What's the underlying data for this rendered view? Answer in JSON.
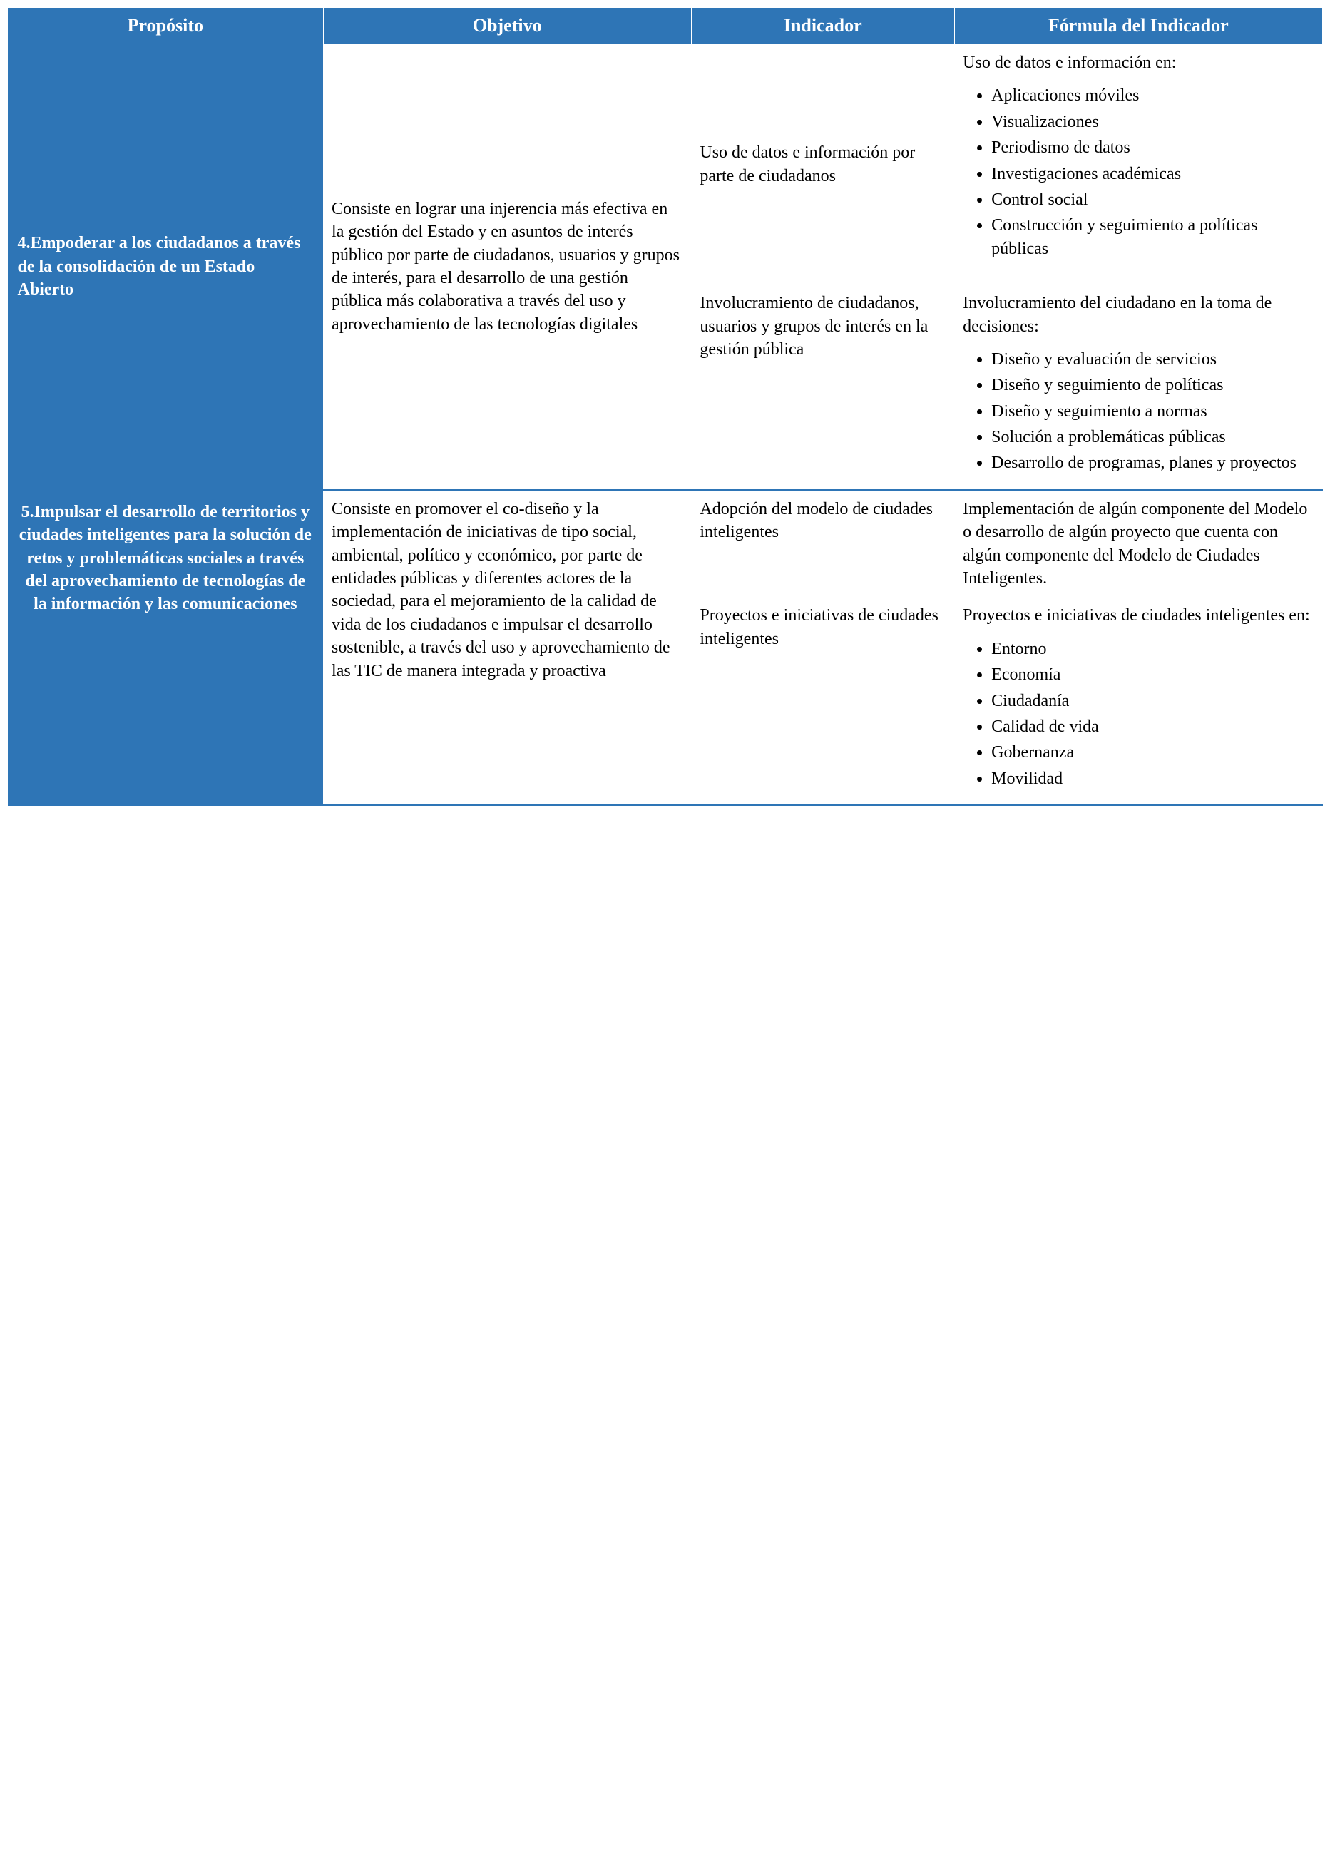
{
  "header_bg": "#2e75b6",
  "header_fg": "#ffffff",
  "columns": {
    "proposito": "Propósito",
    "objetivo": "Objetivo",
    "indicador": "Indicador",
    "formula": "Fórmula del Indicador"
  },
  "row4": {
    "proposito": "4.Empoderar a los ciudadanos a través de la consolidación de un Estado Abierto",
    "objetivo": "Consiste en lograr una injerencia más efectiva en la gestión del Estado y en asuntos de interés público por parte de ciudadanos, usuarios y grupos de interés, para el desarrollo de una gestión pública más colaborativa a través del uso y aprovechamiento de las tecnologías digitales",
    "indicador_a": "Uso de datos e información por parte de ciudadanos",
    "indicador_b": "Involucramiento de ciudadanos, usuarios y grupos de interés en la gestión pública",
    "formula_a_intro": "Uso de datos e información en:",
    "formula_a_items": [
      "Aplicaciones móviles",
      "Visualizaciones",
      "Periodismo de datos",
      "Investigaciones académicas",
      "Control social",
      "Construcción y seguimiento a políticas públicas"
    ],
    "formula_b_intro": "Involucramiento del ciudadano en la toma de decisiones:",
    "formula_b_items": [
      "Diseño y evaluación de servicios",
      "Diseño y seguimiento de políticas",
      "Diseño y seguimiento a normas",
      "Solución a problemáticas públicas",
      "Desarrollo de programas, planes y proyectos"
    ]
  },
  "row5": {
    "proposito": "5.Impulsar el desarrollo de territorios y ciudades inteligentes para la solución de retos y problemáticas sociales a través del aprovechamiento de tecnologías de la información y las comunicaciones",
    "objetivo": "Consiste en promover el co-diseño y la implementación de iniciativas de tipo social, ambiental, político y económico, por parte de entidades públicas y diferentes actores de la sociedad, para el mejoramiento de la calidad de vida de los ciudadanos e impulsar el desarrollo sostenible, a través del uso y aprovechamiento de las TIC de manera integrada y proactiva",
    "indicador_a": "Adopción del modelo de ciudades inteligentes",
    "indicador_b": "Proyectos e iniciativas de ciudades inteligentes",
    "formula_a_text": "Implementación de algún componente del Modelo o desarrollo de algún proyecto que cuenta con algún componente del Modelo de Ciudades Inteligentes.",
    "formula_b_intro": "Proyectos e iniciativas de ciudades inteligentes en:",
    "formula_b_items": [
      "Entorno",
      "Economía",
      "Ciudadanía",
      "Calidad de vida",
      "Gobernanza",
      "Movilidad"
    ]
  }
}
